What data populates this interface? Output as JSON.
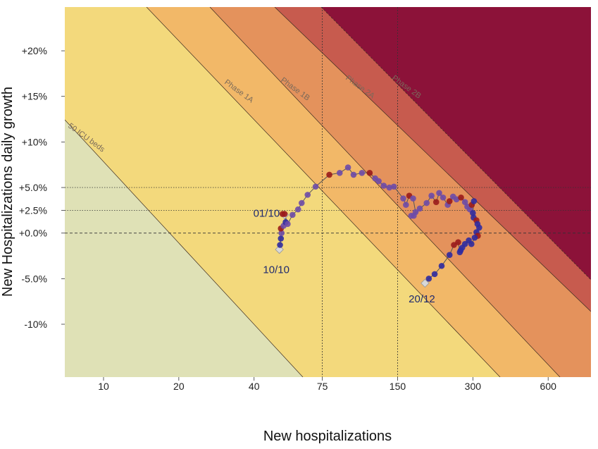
{
  "chart_data": {
    "type": "scatter",
    "xlabel": "New hospitalizations",
    "ylabel": "New Hospitalizations daily growth",
    "x_scale": "log",
    "x_range": [
      7,
      890
    ],
    "y_range": [
      -15.8,
      24.8
    ],
    "x_ticks": [
      {
        "value": 10,
        "label": "10"
      },
      {
        "value": 20,
        "label": "20"
      },
      {
        "value": 40,
        "label": "40"
      },
      {
        "value": 75,
        "label": "75"
      },
      {
        "value": 150,
        "label": "150"
      },
      {
        "value": 300,
        "label": "300"
      },
      {
        "value": 600,
        "label": "600"
      }
    ],
    "y_ticks": [
      {
        "value": 20,
        "label": "+20%"
      },
      {
        "value": 15,
        "label": "+15%"
      },
      {
        "value": 10,
        "label": "+10%"
      },
      {
        "value": 5,
        "label": "+5.0%"
      },
      {
        "value": 2.5,
        "label": "+2.5%"
      },
      {
        "value": 0,
        "label": "+0.0%"
      },
      {
        "value": -5,
        "label": "-5.0%"
      },
      {
        "value": -10,
        "label": "-10%"
      }
    ],
    "reference_lines": {
      "x": [
        75,
        150
      ],
      "y_dotted": [
        5,
        2.5
      ],
      "y_dashed": [
        0
      ]
    },
    "zones": [
      {
        "name": "",
        "color": "#dfe1b6"
      },
      {
        "name": "50 ICU beds",
        "color": "#f3d97c"
      },
      {
        "name": "Phase 1A",
        "color": "#f2b868"
      },
      {
        "name": "Phase 1B",
        "color": "#e4925c"
      },
      {
        "name": "Phase 2A",
        "color": "#c75b4e"
      },
      {
        "name": "Phase 2B",
        "color": "#8c1239"
      }
    ],
    "colors": {
      "path_line": "#555555",
      "point_blue": "#2f2ba0",
      "point_purple": "#6d4ba8",
      "point_red": "#9a1b1b",
      "endpoint": "#d8d8d8"
    },
    "annotations": [
      {
        "text": "01/10",
        "x": 52.7,
        "y": 1.8
      },
      {
        "text": "10/10",
        "x": 49.7,
        "y": -3.0
      },
      {
        "text": "20/12",
        "x": 190,
        "y": -6.2
      }
    ],
    "points": [
      {
        "x": 50.5,
        "y": -1.8,
        "c": "white"
      },
      {
        "x": 50.8,
        "y": -1.3,
        "c": "blue"
      },
      {
        "x": 51.2,
        "y": -0.6,
        "c": "blue"
      },
      {
        "x": 51.5,
        "y": 0.0,
        "c": "purple"
      },
      {
        "x": 51.2,
        "y": 0.5,
        "c": "red"
      },
      {
        "x": 52.5,
        "y": 0.8,
        "c": "purple"
      },
      {
        "x": 53.5,
        "y": 1.2,
        "c": "blue"
      },
      {
        "x": 53.0,
        "y": 2.0,
        "c": "white"
      },
      {
        "x": 52.0,
        "y": 2.1,
        "c": "red"
      },
      {
        "x": 53.0,
        "y": 2.1,
        "c": "red"
      },
      {
        "x": 54.5,
        "y": 1.0,
        "c": "purple"
      },
      {
        "x": 57.0,
        "y": 2.0,
        "c": "purple"
      },
      {
        "x": 60.0,
        "y": 2.6,
        "c": "purple"
      },
      {
        "x": 62.0,
        "y": 3.3,
        "c": "purple"
      },
      {
        "x": 65.5,
        "y": 4.2,
        "c": "purple"
      },
      {
        "x": 70.5,
        "y": 5.1,
        "c": "purple"
      },
      {
        "x": 80.0,
        "y": 6.4,
        "c": "red"
      },
      {
        "x": 88.0,
        "y": 6.6,
        "c": "purple"
      },
      {
        "x": 95.0,
        "y": 7.2,
        "c": "purple"
      },
      {
        "x": 100.0,
        "y": 6.4,
        "c": "purple"
      },
      {
        "x": 108.0,
        "y": 6.6,
        "c": "purple"
      },
      {
        "x": 116.0,
        "y": 6.6,
        "c": "red"
      },
      {
        "x": 122.0,
        "y": 6.0,
        "c": "purple"
      },
      {
        "x": 126.0,
        "y": 5.7,
        "c": "purple"
      },
      {
        "x": 132.0,
        "y": 5.2,
        "c": "purple"
      },
      {
        "x": 139.0,
        "y": 5.0,
        "c": "purple"
      },
      {
        "x": 145.0,
        "y": 5.1,
        "c": "purple"
      },
      {
        "x": 158.0,
        "y": 3.8,
        "c": "purple"
      },
      {
        "x": 162.0,
        "y": 3.1,
        "c": "purple"
      },
      {
        "x": 167.0,
        "y": 4.1,
        "c": "red"
      },
      {
        "x": 173.0,
        "y": 3.8,
        "c": "purple"
      },
      {
        "x": 177.0,
        "y": 2.3,
        "c": "purple"
      },
      {
        "x": 170.0,
        "y": 1.9,
        "c": "purple"
      },
      {
        "x": 174.0,
        "y": 1.9,
        "c": "purple"
      },
      {
        "x": 184.0,
        "y": 2.7,
        "c": "purple"
      },
      {
        "x": 196.0,
        "y": 3.3,
        "c": "purple"
      },
      {
        "x": 205.0,
        "y": 4.1,
        "c": "purple"
      },
      {
        "x": 214.0,
        "y": 3.4,
        "c": "red"
      },
      {
        "x": 220.0,
        "y": 4.4,
        "c": "purple"
      },
      {
        "x": 228.0,
        "y": 3.9,
        "c": "purple"
      },
      {
        "x": 238.0,
        "y": 3.1,
        "c": "purple"
      },
      {
        "x": 242.0,
        "y": 3.5,
        "c": "red"
      },
      {
        "x": 250.0,
        "y": 4.0,
        "c": "purple"
      },
      {
        "x": 258.0,
        "y": 3.7,
        "c": "purple"
      },
      {
        "x": 269.0,
        "y": 3.9,
        "c": "red"
      },
      {
        "x": 279.0,
        "y": 3.4,
        "c": "purple"
      },
      {
        "x": 285.0,
        "y": 2.9,
        "c": "purple"
      },
      {
        "x": 292.0,
        "y": 2.6,
        "c": "purple"
      },
      {
        "x": 297.0,
        "y": 3.1,
        "c": "red"
      },
      {
        "x": 303.0,
        "y": 3.5,
        "c": "blue"
      },
      {
        "x": 300.0,
        "y": 2.2,
        "c": "blue"
      },
      {
        "x": 302.0,
        "y": 1.7,
        "c": "blue"
      },
      {
        "x": 310.0,
        "y": 1.4,
        "c": "red"
      },
      {
        "x": 313.0,
        "y": 1.0,
        "c": "blue"
      },
      {
        "x": 318.0,
        "y": 0.6,
        "c": "blue"
      },
      {
        "x": 310.0,
        "y": 0.1,
        "c": "blue"
      },
      {
        "x": 314.0,
        "y": -0.3,
        "c": "red"
      },
      {
        "x": 305.0,
        "y": -0.5,
        "c": "blue"
      },
      {
        "x": 296.0,
        "y": -1.2,
        "c": "blue"
      },
      {
        "x": 289.0,
        "y": -0.8,
        "c": "blue"
      },
      {
        "x": 279.0,
        "y": -1.2,
        "c": "blue"
      },
      {
        "x": 272.0,
        "y": -1.6,
        "c": "blue"
      },
      {
        "x": 268.0,
        "y": -1.9,
        "c": "blue"
      },
      {
        "x": 266.0,
        "y": -2.1,
        "c": "blue"
      },
      {
        "x": 262.0,
        "y": -1.0,
        "c": "red"
      },
      {
        "x": 252.0,
        "y": -1.3,
        "c": "red"
      },
      {
        "x": 242.0,
        "y": -2.4,
        "c": "blue"
      },
      {
        "x": 225.0,
        "y": -3.6,
        "c": "blue"
      },
      {
        "x": 211.0,
        "y": -4.5,
        "c": "blue"
      },
      {
        "x": 200.0,
        "y": -5.0,
        "c": "blue"
      },
      {
        "x": 193.0,
        "y": -5.5,
        "c": "white"
      }
    ]
  }
}
